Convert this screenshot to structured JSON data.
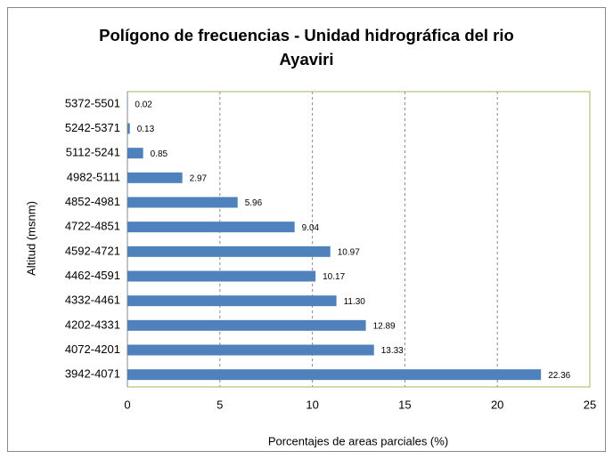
{
  "chart_data": {
    "type": "hbar",
    "title": "Polígono de frecuencias - Unidad hidrográfica del rio Ayaviri",
    "x_label": "Porcentajes de areas parciales (%)",
    "y_label": "Altitud (msnm)",
    "categories": [
      "5372-5501",
      "5242-5371",
      "5112-5241",
      "4982-5111",
      "4852-4981",
      "4722-4851",
      "4592-4721",
      "4462-4591",
      "4332-4461",
      "4202-4331",
      "4072-4201",
      "3942-4071"
    ],
    "values": [
      0.02,
      0.13,
      0.85,
      2.97,
      5.96,
      9.04,
      10.97,
      10.17,
      11.3,
      12.89,
      13.33,
      22.36
    ],
    "value_labels": [
      "0.02",
      "0.13",
      "0.85",
      "2.97",
      "5.96",
      "9.04",
      "10.97",
      "10.17",
      "11.30",
      "12.89",
      "13.33",
      "22.36"
    ],
    "color": "#4f81bd",
    "xlim": [
      0,
      25
    ],
    "xticks": [
      0,
      5,
      10,
      15,
      20,
      25
    ],
    "grid": true
  }
}
